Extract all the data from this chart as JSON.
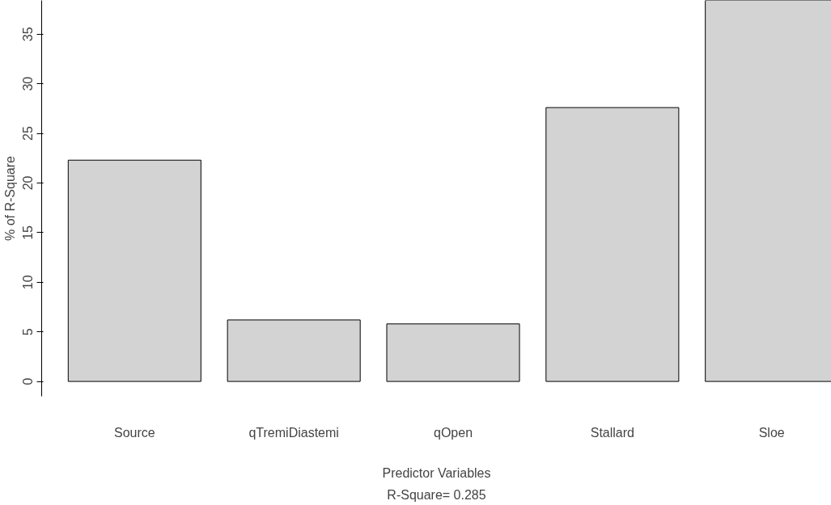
{
  "chart_data": {
    "type": "bar",
    "categories": [
      "Source",
      "qTremiDiastemi",
      "qOpen",
      "Stallard",
      "Sloe"
    ],
    "values": [
      22.3,
      6.2,
      5.8,
      27.6,
      38.4
    ],
    "color": "#d3d3d3",
    "xlabel": "Predictor Variables",
    "ylabel": "% of R-Square",
    "annotations": [
      "R-Square= 0.285"
    ],
    "ylim": [
      -1.5,
      38.4
    ],
    "yticks": [
      0,
      5,
      10,
      15,
      20,
      25,
      30,
      35
    ],
    "grid": false
  }
}
